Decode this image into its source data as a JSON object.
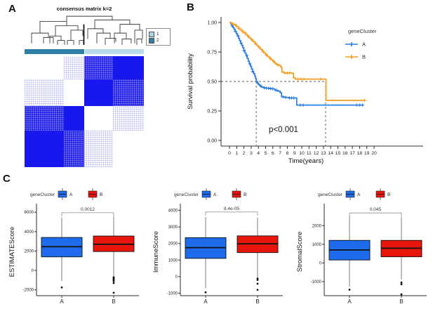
{
  "panels": {
    "a": "A",
    "b": "B",
    "c": "C"
  },
  "panel_a": {
    "title": "consensus matrix k=2",
    "legend_items": [
      {
        "label": "1",
        "color": "#aad2e4"
      },
      {
        "label": "2",
        "color": "#2f7fa7"
      }
    ],
    "cluster_bar_colors": [
      "#2f7fa7",
      "#b7dbe9"
    ],
    "chart_data": {
      "type": "heatmap",
      "title": "consensus matrix k=2",
      "clusters": [
        "1",
        "2"
      ],
      "row_fracs": [
        0.21,
        0.24,
        0.22,
        0.33
      ],
      "col_fracs": [
        0.33,
        0.17,
        0.24,
        0.26
      ],
      "values": [
        [
          0,
          0.15,
          0.9,
          1
        ],
        [
          0.15,
          0,
          1,
          0.9
        ],
        [
          0.9,
          1,
          0,
          0.15
        ],
        [
          1,
          0.9,
          0.15,
          0
        ]
      ],
      "color_high": "#1717ee",
      "color_zero": "#ffffff"
    }
  },
  "panel_b": {
    "chart_data": {
      "type": "line",
      "subtype": "kaplan-meier",
      "xlabel": "Time(years)",
      "ylabel": "Survival probability",
      "xticks": [
        0,
        1,
        2,
        3,
        4,
        5,
        6,
        7,
        8,
        9,
        10,
        11,
        12,
        13,
        14,
        15,
        16,
        17,
        18,
        19,
        20
      ],
      "yticks": [
        0,
        0.25,
        0.5,
        0.75,
        1
      ],
      "xlim": [
        0,
        20
      ],
      "ylim": [
        0,
        1
      ],
      "legend_title": "geneCluster",
      "p_label": "p<0.001",
      "median_markers": {
        "surv": 0.5,
        "times": [
          3.7,
          13.3
        ]
      },
      "series": [
        {
          "name": "A",
          "color": "#2e7de0",
          "steps": [
            [
              0,
              1.0
            ],
            [
              0.2,
              0.985
            ],
            [
              0.35,
              0.97
            ],
            [
              0.5,
              0.955
            ],
            [
              0.65,
              0.94
            ],
            [
              0.8,
              0.925
            ],
            [
              0.95,
              0.905
            ],
            [
              1.1,
              0.885
            ],
            [
              1.25,
              0.865
            ],
            [
              1.4,
              0.845
            ],
            [
              1.55,
              0.825
            ],
            [
              1.7,
              0.805
            ],
            [
              1.85,
              0.785
            ],
            [
              2.0,
              0.762
            ],
            [
              2.15,
              0.74
            ],
            [
              2.3,
              0.718
            ],
            [
              2.45,
              0.695
            ],
            [
              2.6,
              0.672
            ],
            [
              2.75,
              0.65
            ],
            [
              2.9,
              0.628
            ],
            [
              3.05,
              0.606
            ],
            [
              3.2,
              0.585
            ],
            [
              3.35,
              0.565
            ],
            [
              3.5,
              0.545
            ],
            [
              3.6,
              0.525
            ],
            [
              3.7,
              0.5
            ],
            [
              3.85,
              0.487
            ],
            [
              4.0,
              0.473
            ],
            [
              4.2,
              0.462
            ],
            [
              4.45,
              0.452
            ],
            [
              4.7,
              0.447
            ],
            [
              5.0,
              0.443
            ],
            [
              5.5,
              0.44
            ],
            [
              6.0,
              0.437
            ],
            [
              6.3,
              0.425
            ],
            [
              6.7,
              0.417
            ],
            [
              7.0,
              0.405
            ],
            [
              7.2,
              0.37
            ],
            [
              7.6,
              0.365
            ],
            [
              8.2,
              0.36
            ],
            [
              9.2,
              0.36
            ],
            [
              9.3,
              0.3
            ],
            [
              18.55,
              0.3
            ]
          ],
          "censor_times": [
            0.4,
            0.8,
            1.2,
            1.6,
            2.0,
            2.4,
            2.8,
            3.2,
            3.9,
            4.3,
            4.8,
            5.1,
            5.4,
            5.7,
            6.0,
            6.5,
            7.4,
            7.8,
            8.3,
            8.6,
            8.9,
            9.8,
            10.2,
            17.6,
            18.0,
            18.4
          ]
        },
        {
          "name": "B",
          "color": "#f59c22",
          "steps": [
            [
              0,
              1.0
            ],
            [
              0.25,
              0.993
            ],
            [
              0.5,
              0.985
            ],
            [
              0.75,
              0.975
            ],
            [
              1.0,
              0.963
            ],
            [
              1.25,
              0.95
            ],
            [
              1.5,
              0.937
            ],
            [
              1.75,
              0.924
            ],
            [
              2.0,
              0.91
            ],
            [
              2.25,
              0.896
            ],
            [
              2.5,
              0.882
            ],
            [
              2.75,
              0.868
            ],
            [
              3.0,
              0.853
            ],
            [
              3.25,
              0.838
            ],
            [
              3.5,
              0.822
            ],
            [
              3.75,
              0.806
            ],
            [
              4.0,
              0.79
            ],
            [
              4.25,
              0.774
            ],
            [
              4.5,
              0.758
            ],
            [
              4.75,
              0.742
            ],
            [
              5.0,
              0.726
            ],
            [
              5.25,
              0.712
            ],
            [
              5.5,
              0.698
            ],
            [
              5.75,
              0.684
            ],
            [
              6.0,
              0.67
            ],
            [
              6.2,
              0.658
            ],
            [
              6.4,
              0.648
            ],
            [
              6.6,
              0.64
            ],
            [
              6.9,
              0.635
            ],
            [
              7.1,
              0.62
            ],
            [
              7.25,
              0.58
            ],
            [
              7.5,
              0.572
            ],
            [
              8.6,
              0.57
            ],
            [
              8.85,
              0.532
            ],
            [
              9.1,
              0.52
            ],
            [
              13.3,
              0.52
            ],
            [
              13.35,
              0.34
            ],
            [
              18.8,
              0.34
            ]
          ],
          "censor_times": [
            0.5,
            0.9,
            1.3,
            1.8,
            2.2,
            2.6,
            3.1,
            3.6,
            4.1,
            4.6,
            5.1,
            5.6,
            6.1,
            6.7,
            7.7,
            8.0,
            8.3,
            9.5,
            9.9,
            10.3,
            12.6,
            18.7
          ]
        }
      ]
    }
  },
  "panel_c": {
    "legend_title": "geneCluster",
    "group_labels": [
      "A",
      "B"
    ],
    "group_colors": [
      "#1e6cec",
      "#e8150d"
    ],
    "chart_data": [
      {
        "type": "box",
        "ylabel": "ESTIMATEScore",
        "p_label": "0.0012",
        "sig_y": 5950,
        "ylim": [
          -2600,
          6450
        ],
        "yticks": [
          -2000,
          0,
          2000,
          4000,
          6000
        ],
        "categories": [
          "A",
          "B"
        ],
        "boxes": [
          {
            "group": "A",
            "low": -1100,
            "q1": 1400,
            "median": 2450,
            "q3": 3400,
            "high": 5450,
            "outliers": [
              -1750
            ]
          },
          {
            "group": "B",
            "low": -580,
            "q1": 1950,
            "median": 2700,
            "q3": 3550,
            "high": 5550,
            "outliers": [
              -700,
              -800,
              -900,
              -1000,
              -1100,
              -1300,
              -2300
            ]
          }
        ]
      },
      {
        "type": "box",
        "ylabel": "ImmuneScore",
        "p_label": "8.4e-05",
        "sig_y": 3900,
        "ylim": [
          -1150,
          4150
        ],
        "yticks": [
          -1000,
          0,
          1000,
          2000,
          3000,
          4000
        ],
        "categories": [
          "A",
          "B"
        ],
        "boxes": [
          {
            "group": "A",
            "low": -700,
            "q1": 1100,
            "median": 1750,
            "q3": 2350,
            "high": 3600,
            "outliers": [
              -950
            ]
          },
          {
            "group": "B",
            "low": -60,
            "q1": 1450,
            "median": 1980,
            "q3": 2460,
            "high": 3560,
            "outliers": [
              -120,
              -200,
              -430,
              -800
            ]
          }
        ]
      },
      {
        "type": "box",
        "ylabel": "StromalScore",
        "p_label": "0.045",
        "sig_y": 2680,
        "ylim": [
          -1750,
          2950
        ],
        "yticks": [
          -1000,
          0,
          1000,
          2000
        ],
        "categories": [
          "A",
          "B"
        ],
        "boxes": [
          {
            "group": "A",
            "low": -1270,
            "q1": 160,
            "median": 700,
            "q3": 1210,
            "high": 2520,
            "outliers": [
              -1430
            ]
          },
          {
            "group": "B",
            "low": -880,
            "q1": 330,
            "median": 790,
            "q3": 1210,
            "high": 2470,
            "outliers": [
              -1040,
              -1140,
              -1680
            ]
          }
        ]
      }
    ]
  }
}
